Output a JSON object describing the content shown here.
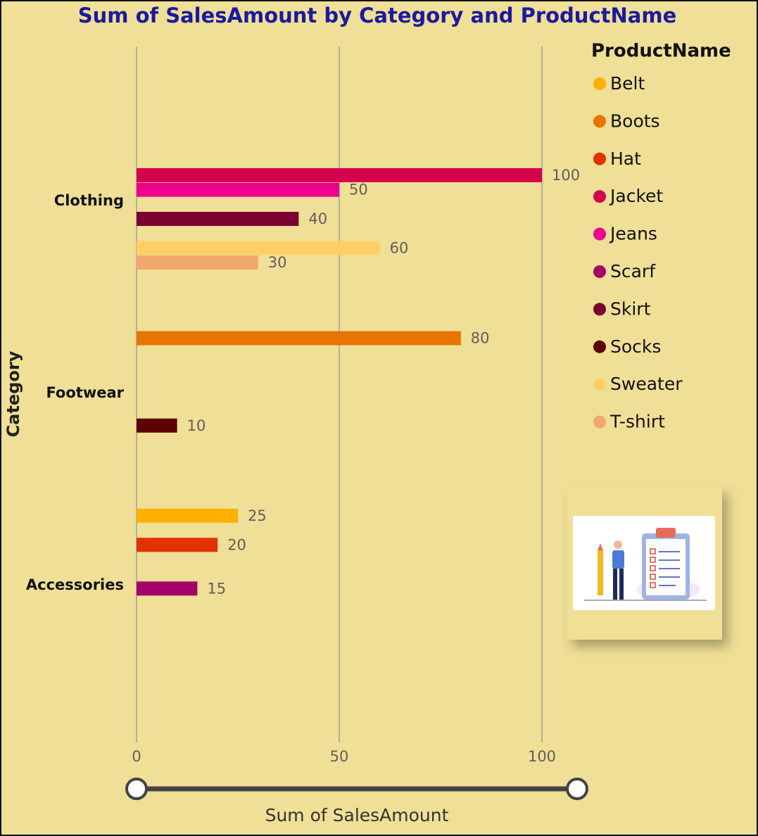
{
  "chart_data": {
    "type": "hbar",
    "title": "Sum of SalesAmount by Category and ProductName",
    "x_label": "Sum of SalesAmount",
    "y_label": "Category",
    "legend_title": "ProductName",
    "legend_position": "top-right",
    "grid": true,
    "categories": [
      "Clothing",
      "Footwear",
      "Accessories"
    ],
    "series": [
      {
        "name": "Belt",
        "color": "#FFB000",
        "values": [
          null,
          null,
          25
        ]
      },
      {
        "name": "Boots",
        "color": "#E87400",
        "values": [
          null,
          80,
          null
        ]
      },
      {
        "name": "Hat",
        "color": "#E03200",
        "values": [
          null,
          null,
          20
        ]
      },
      {
        "name": "Jacket",
        "color": "#D4004C",
        "values": [
          100,
          null,
          null
        ]
      },
      {
        "name": "Jeans",
        "color": "#EC008C",
        "values": [
          50,
          null,
          null
        ]
      },
      {
        "name": "Scarf",
        "color": "#A3006A",
        "values": [
          null,
          null,
          15
        ]
      },
      {
        "name": "Skirt",
        "color": "#7A0032",
        "values": [
          40,
          null,
          null
        ]
      },
      {
        "name": "Socks",
        "color": "#5C0000",
        "values": [
          null,
          10,
          null
        ]
      },
      {
        "name": "Sweater",
        "color": "#FFCF66",
        "values": [
          60,
          null,
          null
        ]
      },
      {
        "name": "T-shirt",
        "color": "#F2A86C",
        "values": [
          30,
          null,
          null
        ]
      }
    ],
    "xlim": [
      0,
      100
    ],
    "xticks": [
      0,
      50,
      100
    ]
  }
}
